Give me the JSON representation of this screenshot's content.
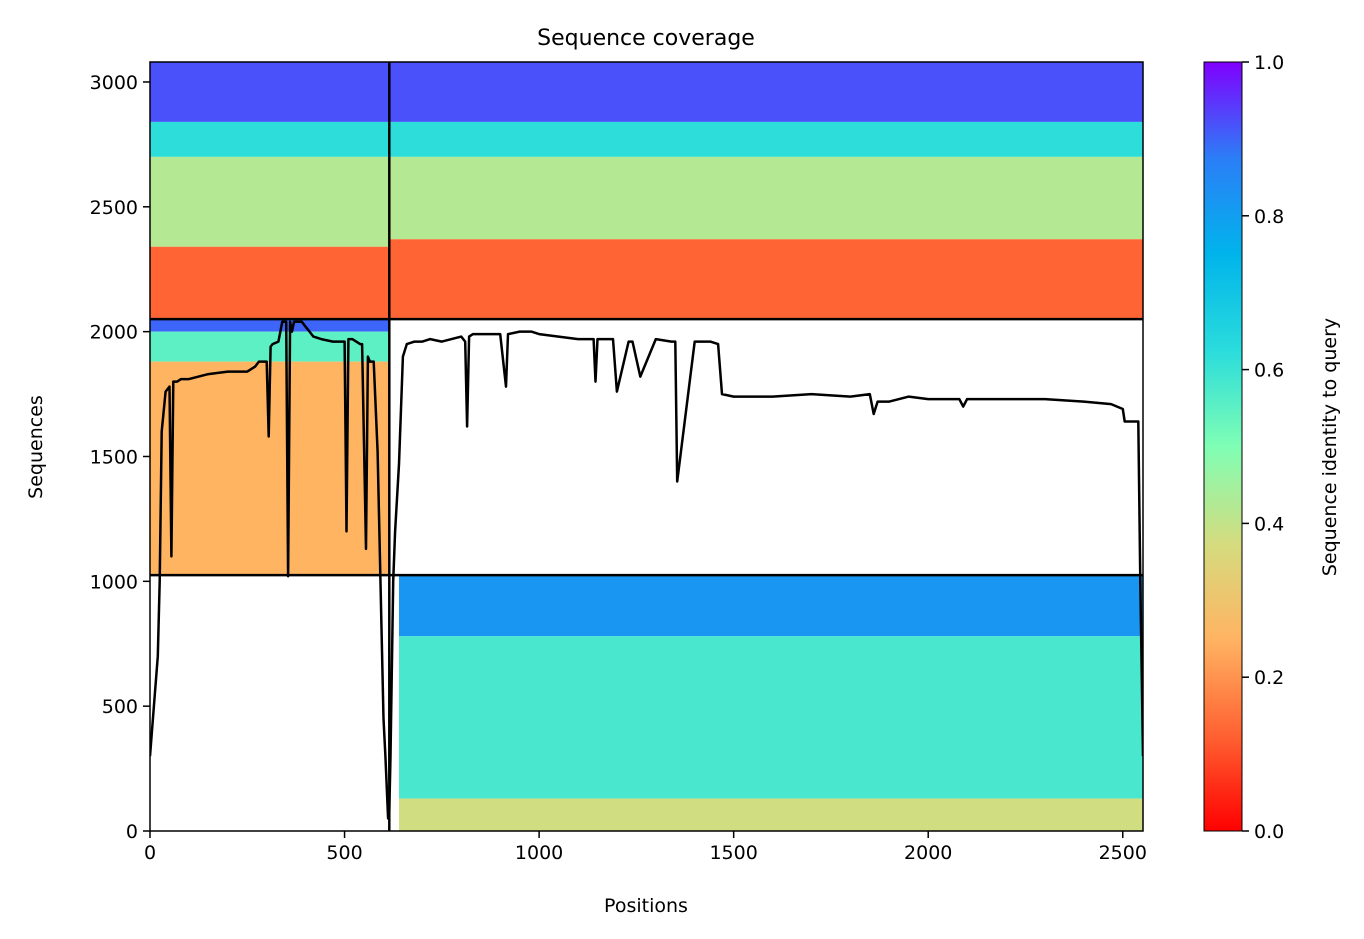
{
  "chart_data": {
    "type": "heatmap",
    "title": "Sequence coverage",
    "xlabel": "Positions",
    "ylabel": "Sequences",
    "xlim": [
      0,
      2552
    ],
    "ylim": [
      0,
      3080
    ],
    "x_ticks": [
      0,
      500,
      1000,
      1500,
      2000,
      2500
    ],
    "y_ticks": [
      0,
      500,
      1000,
      1500,
      2000,
      2500,
      3000
    ],
    "colorbar": {
      "label": "Sequence identity to query",
      "range": [
        0,
        1
      ],
      "ticks": [
        "0.0",
        "0.2",
        "0.4",
        "0.6",
        "0.8",
        "1.0"
      ],
      "colormap": "rainbow_r"
    },
    "boundaries": {
      "vertical_x": 615,
      "horizontal_y": [
        1025,
        2050
      ]
    },
    "blocks": [
      {
        "x": [
          0,
          615
        ],
        "y": [
          2050,
          3080
        ],
        "identity_bands": [
          {
            "y": [
              2840,
              3080
            ],
            "identity": 0.92
          },
          {
            "y": [
              2700,
              2840
            ],
            "identity": 0.62
          },
          {
            "y": [
              2340,
              2700
            ],
            "identity": 0.42
          },
          {
            "y": [
              2050,
              2340
            ],
            "identity": 0.13
          }
        ]
      },
      {
        "x": [
          615,
          2552
        ],
        "y": [
          2050,
          3080
        ],
        "identity_bands": [
          {
            "y": [
              2840,
              3080
            ],
            "identity": 0.92
          },
          {
            "y": [
              2700,
              2840
            ],
            "identity": 0.62
          },
          {
            "y": [
              2370,
              2700
            ],
            "identity": 0.42
          },
          {
            "y": [
              2050,
              2370
            ],
            "identity": 0.13
          }
        ]
      },
      {
        "x": [
          0,
          615
        ],
        "y": [
          1025,
          2050
        ],
        "identity_bands": [
          {
            "y": [
              2000,
              2050
            ],
            "identity": 0.9
          },
          {
            "y": [
              1880,
              2000
            ],
            "identity": 0.55
          },
          {
            "y": [
              1025,
              1880
            ],
            "identity": 0.25
          }
        ]
      },
      {
        "x": [
          640,
          2552
        ],
        "y": [
          0,
          1025
        ],
        "identity_bands": [
          {
            "y": [
              780,
              1025
            ],
            "identity": 0.82
          },
          {
            "y": [
              130,
              780
            ],
            "identity": 0.58
          },
          {
            "y": [
              0,
              130
            ],
            "identity": 0.38
          }
        ]
      }
    ],
    "coverage_line": {
      "x": [
        0,
        10,
        20,
        25,
        30,
        40,
        45,
        50,
        55,
        60,
        70,
        80,
        100,
        150,
        200,
        250,
        270,
        280,
        300,
        305,
        310,
        315,
        330,
        340,
        350,
        355,
        360,
        365,
        370,
        390,
        400,
        410,
        420,
        440,
        470,
        490,
        500,
        505,
        510,
        520,
        540,
        545,
        555,
        560,
        565,
        575,
        585,
        600,
        605,
        612,
        615,
        618,
        625,
        630,
        640,
        650,
        660,
        680,
        700,
        720,
        750,
        800,
        810,
        815,
        820,
        830,
        850,
        900,
        915,
        920,
        950,
        980,
        1000,
        1050,
        1100,
        1140,
        1145,
        1150,
        1190,
        1200,
        1230,
        1240,
        1260,
        1300,
        1340,
        1350,
        1355,
        1400,
        1440,
        1460,
        1470,
        1500,
        1600,
        1700,
        1800,
        1850,
        1860,
        1870,
        1900,
        1950,
        2000,
        2080,
        2090,
        2100,
        2200,
        2300,
        2400,
        2470,
        2500,
        2505,
        2540,
        2545,
        2552
      ],
      "y": [
        300,
        500,
        700,
        1000,
        1600,
        1760,
        1770,
        1780,
        1100,
        1800,
        1800,
        1810,
        1810,
        1830,
        1840,
        1840,
        1860,
        1880,
        1880,
        1580,
        1940,
        1950,
        1960,
        2040,
        2040,
        1020,
        2040,
        2000,
        2040,
        2040,
        2020,
        2000,
        1980,
        1970,
        1960,
        1960,
        1960,
        1200,
        1970,
        1970,
        1950,
        1950,
        1130,
        1900,
        1880,
        1880,
        1520,
        450,
        300,
        50,
        80,
        300,
        1000,
        1200,
        1470,
        1900,
        1950,
        1960,
        1960,
        1970,
        1960,
        1980,
        1960,
        1620,
        1980,
        1990,
        1990,
        1990,
        1780,
        1990,
        2000,
        2000,
        1990,
        1980,
        1970,
        1970,
        1800,
        1970,
        1970,
        1760,
        1960,
        1960,
        1820,
        1970,
        1960,
        1960,
        1400,
        1960,
        1960,
        1950,
        1750,
        1740,
        1740,
        1750,
        1740,
        1750,
        1670,
        1720,
        1720,
        1740,
        1730,
        1730,
        1700,
        1730,
        1730,
        1730,
        1720,
        1710,
        1690,
        1640,
        1640,
        1000,
        300
      ]
    }
  }
}
